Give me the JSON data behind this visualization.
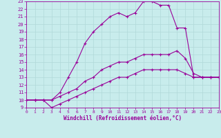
{
  "xlabel": "Windchill (Refroidissement éolien,°C)",
  "xlim": [
    0,
    23
  ],
  "ylim": [
    9,
    23
  ],
  "xticks": [
    0,
    1,
    2,
    3,
    4,
    5,
    6,
    7,
    8,
    9,
    10,
    11,
    12,
    13,
    14,
    15,
    16,
    17,
    18,
    19,
    20,
    21,
    22,
    23
  ],
  "yticks": [
    9,
    10,
    11,
    12,
    13,
    14,
    15,
    16,
    17,
    18,
    19,
    20,
    21,
    22,
    23
  ],
  "bg_color": "#c8ecec",
  "grid_color": "#b0d8d8",
  "line_color": "#990099",
  "lines": [
    {
      "x": [
        0,
        1,
        2,
        3,
        4,
        5,
        6,
        7,
        8,
        9,
        10,
        11,
        12,
        13,
        14,
        15,
        16,
        17,
        18,
        19,
        20,
        21,
        22,
        23
      ],
      "y": [
        10,
        10,
        10,
        9,
        9.5,
        10,
        10.5,
        11,
        11.5,
        12,
        12.5,
        13,
        13,
        13.5,
        14,
        14,
        14,
        14,
        14,
        13.5,
        13,
        13,
        13,
        13
      ]
    },
    {
      "x": [
        0,
        1,
        2,
        3,
        4,
        5,
        6,
        7,
        8,
        9,
        10,
        11,
        12,
        13,
        14,
        15,
        16,
        17,
        18,
        19,
        20,
        21,
        22,
        23
      ],
      "y": [
        10,
        10,
        10,
        10,
        10.5,
        11,
        11.5,
        12.5,
        13,
        14,
        14.5,
        15,
        15,
        15.5,
        16,
        16,
        16,
        16,
        16.5,
        15.5,
        13.5,
        13,
        13,
        13
      ]
    },
    {
      "x": [
        0,
        1,
        2,
        3,
        4,
        5,
        6,
        7,
        8,
        9,
        10,
        11,
        12,
        13,
        14,
        15,
        16,
        17,
        18,
        19,
        20,
        21,
        22,
        23
      ],
      "y": [
        10,
        10,
        10,
        10,
        11,
        13,
        15,
        17.5,
        19,
        20,
        21,
        21.5,
        21,
        21.5,
        23,
        23,
        22.5,
        22.5,
        19.5,
        19.5,
        13,
        13,
        13,
        13
      ]
    },
    {
      "x": [
        18,
        19,
        20,
        21,
        22,
        23
      ],
      "y": [
        19.5,
        19.5,
        13,
        13,
        13,
        13
      ]
    }
  ]
}
